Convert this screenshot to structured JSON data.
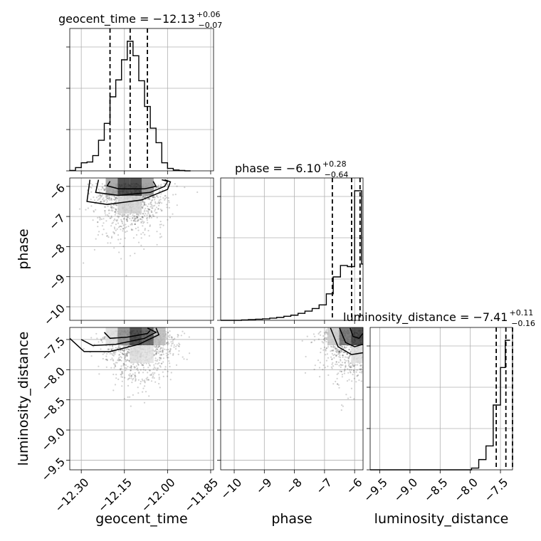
{
  "chart_data": {
    "type": "corner",
    "parameters": [
      "geocent_time",
      "phase",
      "luminosity_distance"
    ],
    "axes": {
      "geocent_time": {
        "label": "geocent_time",
        "range": [
          -12.34,
          -11.84
        ],
        "ticks": [
          -12.3,
          -12.15,
          -12.0,
          -11.85
        ],
        "tick_labels": [
          "−12.30",
          "−12.15",
          "−12.00",
          "−11.85"
        ]
      },
      "phase": {
        "label": "phase",
        "range": [
          -10.45,
          -5.72
        ],
        "ticks": [
          -10,
          -9,
          -8,
          -7,
          -6
        ],
        "tick_labels": [
          "−10",
          "−9",
          "−8",
          "−7",
          "−6"
        ]
      },
      "luminosity_distance": {
        "label": "luminosity_distance",
        "range": [
          -9.66,
          -7.3
        ],
        "ticks": [
          -9.5,
          -9.0,
          -8.5,
          -8.0,
          -7.5
        ],
        "tick_labels": [
          "−9.5",
          "−9.0",
          "−8.5",
          "−8.0",
          "−7.5"
        ]
      }
    },
    "titles": {
      "geocent_time": {
        "text": "geocent_time = −12.13",
        "plus": "+0.06",
        "minus": "−0.07"
      },
      "phase": {
        "text": "phase = −6.10",
        "plus": "+0.28",
        "minus": "−0.64"
      },
      "luminosity_distance": {
        "text": "luminosity_distance = −7.41",
        "plus": "+0.11",
        "minus": "−0.16"
      }
    },
    "marginals": {
      "geocent_time": {
        "edges": [
          -12.34,
          -12.32,
          -12.3,
          -12.28,
          -12.26,
          -12.24,
          -12.22,
          -12.2,
          -12.18,
          -12.16,
          -12.14,
          -12.12,
          -12.1,
          -12.08,
          -12.06,
          -12.04,
          -12.02,
          -12.0,
          -11.98,
          -11.96,
          -11.94,
          -11.92
        ],
        "counts": [
          0.5,
          4,
          10,
          11,
          19,
          38,
          59,
          92,
          113,
          138,
          161,
          143,
          112,
          80,
          53,
          35,
          10,
          3,
          1,
          0.5,
          0
        ],
        "quantiles": [
          -12.2,
          -12.13,
          -12.07
        ]
      },
      "phase": {
        "edges": [
          -10.45,
          -10.22,
          -10.0,
          -9.76,
          -9.53,
          -9.29,
          -9.06,
          -8.82,
          -8.59,
          -8.35,
          -8.12,
          -7.88,
          -7.65,
          -7.41,
          -7.18,
          -6.94,
          -6.71,
          -6.47,
          -6.24,
          -6.0,
          -5.77,
          -5.72
        ],
        "counts": [
          0,
          0,
          0,
          1,
          2,
          3,
          4,
          6,
          8,
          11,
          14,
          19,
          25,
          32,
          42,
          72,
          118,
          149,
          146,
          352,
          153
        ],
        "quantiles": [
          -6.74,
          -6.1,
          -5.82
        ]
      },
      "luminosity_distance": {
        "edges": [
          -9.66,
          -9.54,
          -9.42,
          -9.3,
          -9.18,
          -9.06,
          -8.94,
          -8.82,
          -8.7,
          -8.58,
          -8.46,
          -8.34,
          -8.22,
          -8.1,
          -7.98,
          -7.86,
          -7.74,
          -7.62,
          -7.5,
          -7.42,
          -7.34
        ],
        "counts": [
          0,
          0,
          0,
          0,
          0,
          0,
          0,
          0,
          0,
          0,
          0,
          0,
          0,
          0,
          0.5,
          3,
          7,
          19,
          30,
          38
        ],
        "quantiles": [
          -7.57,
          -7.41,
          -7.3
        ]
      }
    },
    "pairs": [
      {
        "x": "geocent_time",
        "y": "phase",
        "density_peak": [
          -12.13,
          -5.9
        ],
        "contours": [
          [
            [
              -12.2,
              -5.83
            ],
            [
              -12.21,
              -5.98
            ],
            [
              -12.17,
              -6.08
            ],
            [
              -12.08,
              -6.08
            ],
            [
              -12.04,
              -6.0
            ],
            [
              -12.05,
              -5.83
            ]
          ],
          [
            [
              -12.24,
              -5.78
            ],
            [
              -12.25,
              -6.2
            ],
            [
              -12.17,
              -6.3
            ],
            [
              -12.06,
              -6.2
            ],
            [
              -12.01,
              -6.0
            ],
            [
              -12.0,
              -5.83
            ],
            [
              -12.02,
              -5.78
            ]
          ],
          [
            [
              -12.27,
              -5.78
            ],
            [
              -12.28,
              -6.5
            ],
            [
              -12.21,
              -6.6
            ],
            [
              -12.09,
              -6.45
            ],
            [
              -12.0,
              -6.1
            ],
            [
              -11.99,
              -5.85
            ],
            [
              -12.01,
              -5.78
            ]
          ]
        ]
      },
      {
        "x": "geocent_time",
        "y": "luminosity_distance",
        "density_peak": [
          -12.1,
          -7.35
        ],
        "contours": [
          [
            [
              -12.22,
              -7.38
            ],
            [
              -12.2,
              -7.48
            ],
            [
              -12.14,
              -7.46
            ],
            [
              -12.07,
              -7.4
            ],
            [
              -12.06,
              -7.35
            ]
          ],
          [
            [
              -12.3,
              -7.5
            ],
            [
              -12.26,
              -7.6
            ],
            [
              -12.18,
              -7.58
            ],
            [
              -12.08,
              -7.48
            ],
            [
              -12.04,
              -7.38
            ],
            [
              -12.07,
              -7.31
            ]
          ],
          [
            [
              -12.34,
              -7.48
            ],
            [
              -12.29,
              -7.7
            ],
            [
              -12.2,
              -7.7
            ],
            [
              -12.1,
              -7.58
            ],
            [
              -12.03,
              -7.42
            ],
            [
              -12.04,
              -7.31
            ]
          ]
        ]
      },
      {
        "x": "phase",
        "y": "luminosity_distance",
        "density_peak": [
          -5.95,
          -7.34
        ],
        "contours": [
          [
            [
              -6.15,
              -7.31
            ],
            [
              -6.05,
              -7.45
            ],
            [
              -5.85,
              -7.48
            ],
            [
              -5.73,
              -7.4
            ]
          ],
          [
            [
              -6.5,
              -7.31
            ],
            [
              -6.3,
              -7.55
            ],
            [
              -6.0,
              -7.62
            ],
            [
              -5.73,
              -7.58
            ]
          ],
          [
            [
              -6.8,
              -7.31
            ],
            [
              -6.55,
              -7.62
            ],
            [
              -6.1,
              -7.75
            ],
            [
              -5.73,
              -7.72
            ]
          ]
        ]
      }
    ]
  }
}
